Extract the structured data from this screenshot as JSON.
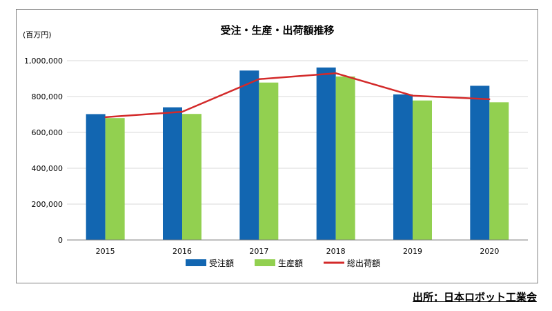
{
  "chart_data": {
    "type": "bar",
    "title": "受注・生産・出荷額推移",
    "unit_label": "(百万円)",
    "categories": [
      "2015",
      "2016",
      "2017",
      "2018",
      "2019",
      "2020"
    ],
    "ylim": [
      0,
      1000000
    ],
    "yticks": [
      "0",
      "200,000",
      "400,000",
      "600,000",
      "800,000",
      "1,000,000"
    ],
    "ytick_values": [
      0,
      200000,
      400000,
      600000,
      800000,
      1000000
    ],
    "grid": true,
    "legend_position": "bottom",
    "series": [
      {
        "name": "受注額",
        "kind": "bar",
        "color": "#1266b1",
        "values": [
          702000,
          740000,
          945000,
          962000,
          812000,
          860000
        ]
      },
      {
        "name": "生産額",
        "kind": "bar",
        "color": "#92d050",
        "values": [
          680000,
          703000,
          878000,
          912000,
          778000,
          768000
        ]
      },
      {
        "name": "総出荷額",
        "kind": "line",
        "color": "#d32a2a",
        "values": [
          685000,
          715000,
          897000,
          930000,
          805000,
          785000
        ]
      }
    ]
  },
  "source": "出所：日本ロボット工業会"
}
